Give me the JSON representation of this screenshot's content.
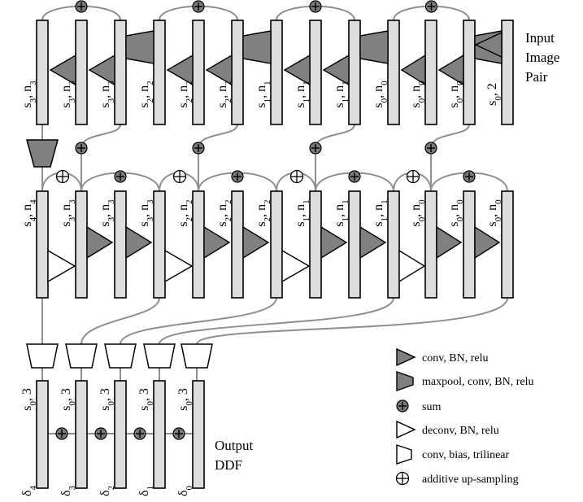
{
  "title_input": [
    "Input",
    "Image",
    "Pair"
  ],
  "title_output": [
    "Output",
    "DDF"
  ],
  "row1_labels": [
    [
      "s",
      "3",
      ", n",
      "3"
    ],
    [
      "s",
      "3",
      ", n",
      "3"
    ],
    [
      "s",
      "3",
      ", n",
      "3"
    ],
    [
      "s",
      "2",
      ", n",
      "2"
    ],
    [
      "s",
      "2",
      ", n",
      "2"
    ],
    [
      "s",
      "2",
      ", n",
      "2"
    ],
    [
      "s",
      "1",
      ", n",
      "1"
    ],
    [
      "s",
      "1",
      ", n",
      "1"
    ],
    [
      "s",
      "1",
      ", n",
      "1"
    ],
    [
      "s",
      "0",
      ", n",
      "0"
    ],
    [
      "s",
      "0",
      ", n",
      "0"
    ],
    [
      "s",
      "0",
      ", n",
      "0"
    ],
    [
      "s",
      "0",
      ", 2",
      ""
    ]
  ],
  "row2_labels": [
    [
      "s",
      "4",
      ", n",
      "4"
    ],
    [
      "s",
      "3",
      ", n",
      "3"
    ],
    [
      "s",
      "3",
      ", n",
      "3"
    ],
    [
      "s",
      "3",
      ", n",
      "3"
    ],
    [
      "s",
      "2",
      ", n",
      "2"
    ],
    [
      "s",
      "2",
      ", n",
      "2"
    ],
    [
      "s",
      "2",
      ", n",
      "2"
    ],
    [
      "s",
      "1",
      ", n",
      "1"
    ],
    [
      "s",
      "1",
      ", n",
      "1"
    ],
    [
      "s",
      "1",
      ", n",
      "1"
    ],
    [
      "s",
      "0",
      ", n",
      "0"
    ],
    [
      "s",
      "0",
      ", n",
      "0"
    ],
    [
      "s",
      "0",
      ", n",
      "0"
    ]
  ],
  "row3_labels": [
    [
      "s",
      "0",
      ", 3",
      ""
    ],
    [
      "s",
      "0",
      ", 3",
      ""
    ],
    [
      "s",
      "0",
      ", 3",
      ""
    ],
    [
      "s",
      "0",
      ", 3",
      ""
    ],
    [
      "s",
      "0",
      ", 3",
      ""
    ]
  ],
  "delta_labels": [
    [
      "δ",
      "4"
    ],
    [
      "δ",
      "3"
    ],
    [
      "δ",
      "2"
    ],
    [
      "δ",
      "1"
    ],
    [
      "δ",
      "0"
    ]
  ],
  "legend": [
    {
      "icon": "conv-triangle-icon",
      "label": "conv, BN, relu"
    },
    {
      "icon": "maxpool-trapezoid-icon",
      "label": "maxpool, conv, BN, relu"
    },
    {
      "icon": "sum-dot-icon",
      "label": "sum"
    },
    {
      "icon": "deconv-triangle-icon",
      "label": "deconv, BN, relu"
    },
    {
      "icon": "conv-trilinear-trapezoid-icon",
      "label": "conv, bias, trilinear"
    },
    {
      "icon": "additive-upsampling-icon",
      "label": "additive up-sampling"
    }
  ],
  "colors": {
    "bar_fill": "#dddddd",
    "dark_fill": "#808080",
    "wire": "#8f8f8f"
  }
}
